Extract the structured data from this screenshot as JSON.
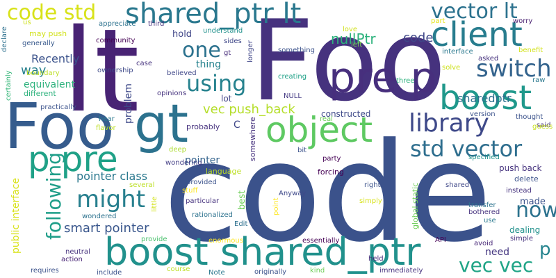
{
  "words": [
    {
      "text": "code",
      "color": "#3b528b"
    },
    {
      "text": "Foo",
      "color": "#46327e"
    },
    {
      "text": "lt",
      "color": "#482374"
    },
    {
      "text": "Foo",
      "color": "#365c8d"
    },
    {
      "text": "boost shared_ptr",
      "color": "#21918c"
    },
    {
      "text": "gt",
      "color": "#2c728e"
    },
    {
      "text": "object",
      "color": "#5ec962"
    },
    {
      "text": "pre p",
      "color": "#472f7d"
    },
    {
      "text": "client",
      "color": "#287d8e"
    },
    {
      "text": "boost",
      "color": "#1f988b"
    },
    {
      "text": "p pre",
      "color": "#1fa187"
    },
    {
      "text": "shared_ptr lt",
      "color": "#2a788e"
    },
    {
      "text": "code std",
      "color": "#d8e219"
    },
    {
      "text": "vector lt",
      "color": "#2c728e"
    },
    {
      "text": "library",
      "color": "#3e4989"
    },
    {
      "text": "std vector",
      "color": "#2e6e8e"
    },
    {
      "text": "might",
      "color": "#277f8e"
    },
    {
      "text": "switch",
      "color": "#33638d"
    },
    {
      "text": "using",
      "color": "#26828e"
    },
    {
      "text": "one",
      "color": "#2c728e"
    },
    {
      "text": "now",
      "color": "#2c728e"
    },
    {
      "text": "vec vec",
      "color": "#20a486"
    },
    {
      "text": "following",
      "color": "#1f9e89"
    },
    {
      "text": "smart pointer",
      "color": "#39568c"
    },
    {
      "text": "vec push_back",
      "color": "#b5de2b"
    },
    {
      "text": "p",
      "color": "#25848e"
    },
    {
      "text": "pointer class",
      "color": "#2a788e"
    },
    {
      "text": "nullPtr",
      "color": "#2db27d"
    },
    {
      "text": "code",
      "color": "#3f4788"
    },
    {
      "text": "delete",
      "color": "#3b528b"
    },
    {
      "text": "sharedptr",
      "color": "#2d708e"
    },
    {
      "text": "Recently",
      "color": "#3b528b"
    },
    {
      "text": "way",
      "color": "#277f8e"
    },
    {
      "text": "equivalent",
      "color": "#2db27d"
    },
    {
      "text": "hold",
      "color": "#404688"
    },
    {
      "text": "thing",
      "color": "#26828e"
    },
    {
      "text": "public interface",
      "color": "#d8e219"
    },
    {
      "text": "global static",
      "color": "#6ece58"
    },
    {
      "text": "best",
      "color": "#6ece58"
    },
    {
      "text": "problem",
      "color": "#3e4989"
    },
    {
      "text": "constructed",
      "color": "#3e4989"
    },
    {
      "text": "pointer",
      "color": "#33638d"
    },
    {
      "text": "need",
      "color": "#453781"
    },
    {
      "text": "push back",
      "color": "#46337e"
    },
    {
      "text": "made",
      "color": "#3b528b"
    },
    {
      "text": "dealing",
      "color": "#21918c"
    },
    {
      "text": "lot",
      "color": "#414487"
    },
    {
      "text": "C",
      "color": "#3f4788"
    },
    {
      "text": "probably",
      "color": "#46327e"
    },
    {
      "text": "somewhere",
      "color": "#46327e"
    },
    {
      "text": "language",
      "color": "#bddf26"
    },
    {
      "text": "forcing",
      "color": "#440154"
    },
    {
      "text": "gt",
      "color": "#472d7b"
    },
    {
      "text": "sides",
      "color": "#3f4788"
    },
    {
      "text": "longer",
      "color": "#404688"
    },
    {
      "text": "may push",
      "color": "#d2e21b"
    },
    {
      "text": "generally",
      "color": "#38598c"
    },
    {
      "text": "boundary",
      "color": "#bddf26"
    },
    {
      "text": "ownership",
      "color": "#3e4989"
    },
    {
      "text": "different",
      "color": "#2db27d"
    },
    {
      "text": "practically",
      "color": "#3b528b"
    },
    {
      "text": "hear",
      "color": "#2a788e"
    },
    {
      "text": "flavor",
      "color": "#bddf26"
    },
    {
      "text": "case",
      "color": "#46337e"
    },
    {
      "text": "believed",
      "color": "#3f4788"
    },
    {
      "text": "opinions",
      "color": "#46337e"
    },
    {
      "text": "declare",
      "color": "#2d708e"
    },
    {
      "text": "us",
      "color": "#cde11d"
    },
    {
      "text": "appreciate",
      "color": "#2c728e"
    },
    {
      "text": "third",
      "color": "#46327e"
    },
    {
      "text": "community",
      "color": "#440154"
    },
    {
      "text": "understand",
      "color": "#21918c"
    },
    {
      "text": "something",
      "color": "#3b528b"
    },
    {
      "text": "creating",
      "color": "#1fa187"
    },
    {
      "text": "love",
      "color": "#d0e11c"
    },
    {
      "text": "left",
      "color": "#7ad151"
    },
    {
      "text": "worry",
      "color": "#481f70"
    },
    {
      "text": "part",
      "color": "#e5e419"
    },
    {
      "text": "benefit",
      "color": "#d2e21b"
    },
    {
      "text": "interface",
      "color": "#2a788e"
    },
    {
      "text": "asked",
      "color": "#46327e"
    },
    {
      "text": "solve",
      "color": "#cde11d"
    },
    {
      "text": "three",
      "color": "#2db27d"
    },
    {
      "text": "raw",
      "color": "#2a788e"
    },
    {
      "text": "certainly",
      "color": "#35b779"
    },
    {
      "text": "NULL",
      "color": "#443983"
    },
    {
      "text": "real",
      "color": "#6ece58"
    },
    {
      "text": "version",
      "color": "#3b528b"
    },
    {
      "text": "thought",
      "color": "#3b528b"
    },
    {
      "text": "said",
      "color": "#46327e"
    },
    {
      "text": "guess",
      "color": "#c8e020"
    },
    {
      "text": "specified",
      "color": "#21918c"
    },
    {
      "text": "deep",
      "color": "#addc30"
    },
    {
      "text": "wondering",
      "color": "#433e85"
    },
    {
      "text": "bit",
      "color": "#3b528b"
    },
    {
      "text": "party",
      "color": "#440154"
    },
    {
      "text": "several",
      "color": "#bddf26"
    },
    {
      "text": "little",
      "color": "#d2e21b"
    },
    {
      "text": "provided",
      "color": "#3b528b"
    },
    {
      "text": "stuff",
      "color": "#fde725"
    },
    {
      "text": "particular",
      "color": "#46327e"
    },
    {
      "text": "rationalized",
      "color": "#2c728e"
    },
    {
      "text": "Anyway",
      "color": "#3e4989"
    },
    {
      "text": "point",
      "color": "#fde725"
    },
    {
      "text": "right",
      "color": "#3b528b"
    },
    {
      "text": "simply",
      "color": "#d8e219"
    },
    {
      "text": "shared",
      "color": "#3f4788"
    },
    {
      "text": "instead",
      "color": "#46327e"
    },
    {
      "text": "transfer",
      "color": "#2c728e"
    },
    {
      "text": "bothered",
      "color": "#46327e"
    },
    {
      "text": "use",
      "color": "#2a788e"
    },
    {
      "text": "wondered",
      "color": "#2c728e"
    },
    {
      "text": "provide",
      "color": "#4ac16d"
    },
    {
      "text": "Edit",
      "color": "#2d708e"
    },
    {
      "text": "enormous",
      "color": "#fde725"
    },
    {
      "text": "essentially",
      "color": "#440154"
    },
    {
      "text": "API",
      "color": "#440154"
    },
    {
      "text": "avoid",
      "color": "#482878"
    },
    {
      "text": "simple",
      "color": "#46327e"
    },
    {
      "text": "neutral",
      "color": "#46327e"
    },
    {
      "text": "action",
      "color": "#482475"
    },
    {
      "text": "include",
      "color": "#3b528b"
    },
    {
      "text": "course",
      "color": "#bddf26"
    },
    {
      "text": "Note",
      "color": "#2a788e"
    },
    {
      "text": "originally",
      "color": "#3b528b"
    },
    {
      "text": "kind",
      "color": "#6ece58"
    },
    {
      "text": "held",
      "color": "#472d7b"
    },
    {
      "text": "immediately",
      "color": "#46327e"
    },
    {
      "text": "requires",
      "color": "#3b528b"
    }
  ]
}
